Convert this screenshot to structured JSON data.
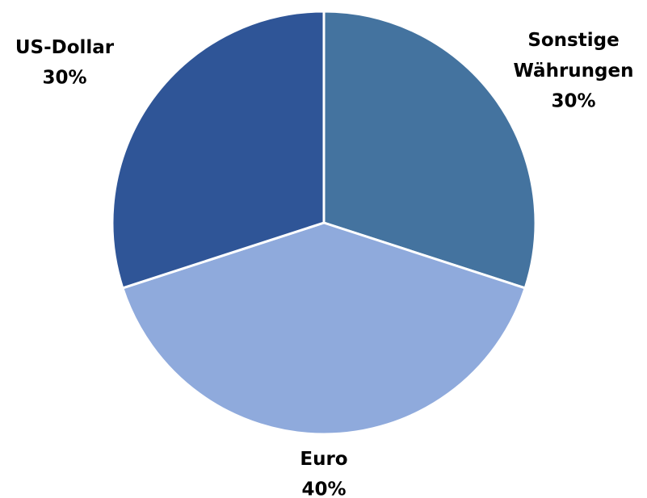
{
  "chart_data": {
    "type": "pie",
    "categories": [
      "Sonstige Währungen",
      "Euro",
      "US-Dollar"
    ],
    "values": [
      30,
      40,
      30
    ],
    "value_labels": [
      "30%",
      "40%",
      "30%"
    ],
    "colors": [
      "#44739f",
      "#8faadc",
      "#2f5597"
    ]
  }
}
